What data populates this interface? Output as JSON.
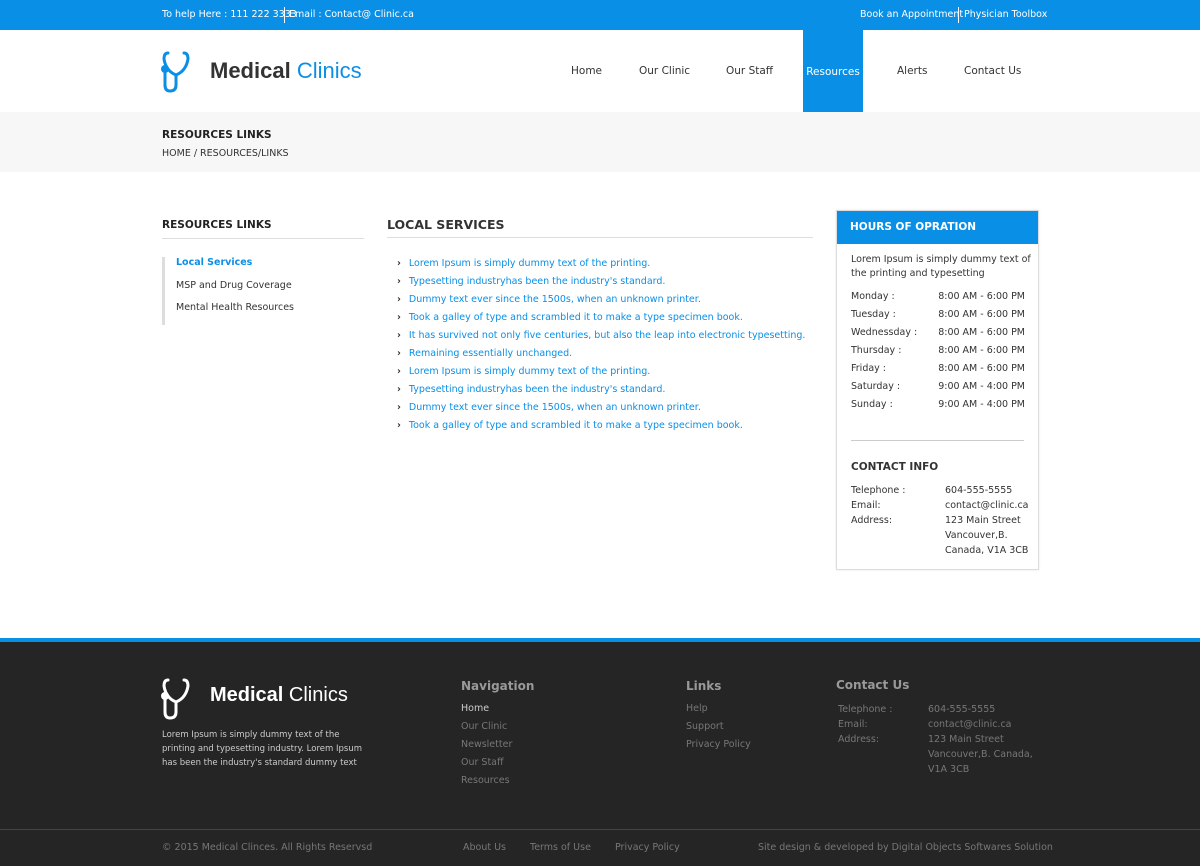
{
  "topbar": {
    "phone": "To help Here : 111 222 3333",
    "email": "Email : Contact@ Clinic.ca",
    "appointment": "Book an Appointment",
    "toolbox": "Physician Toolbox"
  },
  "brand": {
    "name1": "Medical",
    "name2": "Clinics",
    "color": "#0a8fe6"
  },
  "nav": [
    "Home",
    "Our Clinic",
    "Our Staff",
    "Resources",
    "Alerts",
    "Contact Us"
  ],
  "page": {
    "title": "RESOURCES LINKS",
    "breadcrumb": "HOME / RESOURCES/LINKS"
  },
  "sidebar": {
    "title": "RESOURCES LINKS",
    "items": [
      "Local Services",
      "MSP and Drug Coverage",
      "Mental Health Resources"
    ]
  },
  "main": {
    "title": "LOCAL SERVICES",
    "links": [
      "Lorem Ipsum is simply dummy text of the printing.",
      "Typesetting industryhas been the industry's standard.",
      "Dummy text ever since the 1500s, when an unknown printer.",
      "Took a galley of type and scrambled it to make a type specimen book.",
      "It has survived not only five centuries, but also the leap into electronic typesetting.",
      "Remaining essentially unchanged.",
      "Lorem Ipsum is simply dummy text of the printing.",
      "Typesetting industryhas been the industry's standard.",
      "Dummy text ever since the 1500s, when an unknown printer.",
      "Took a galley of type and scrambled it to make a type specimen book."
    ]
  },
  "hours": {
    "title": "HOURS OF OPRATION",
    "intro": "Lorem Ipsum is simply dummy text of the printing and typesetting",
    "rows": [
      [
        "Monday :",
        "8:00 AM - 6:00 PM"
      ],
      [
        "Tuesday :",
        "8:00 AM - 6:00 PM"
      ],
      [
        "Wednessday :",
        "8:00 AM - 6:00 PM"
      ],
      [
        "Thursday :",
        "8:00 AM - 6:00 PM"
      ],
      [
        "Friday :",
        "8:00 AM - 6:00 PM"
      ],
      [
        "Saturday :",
        "9:00 AM - 4:00 PM"
      ],
      [
        "Sunday :",
        "9:00 AM - 4:00 PM"
      ]
    ],
    "contact_title": "CONTACT INFO",
    "contact": [
      [
        "Telephone :",
        "604-555-5555"
      ],
      [
        "Email:",
        "contact@clinic.ca"
      ],
      [
        "Address:",
        "123 Main Street"
      ],
      [
        "",
        "Vancouver,B."
      ],
      [
        "",
        "Canada, V1A 3CB"
      ]
    ]
  },
  "footer": {
    "about": "Lorem Ipsum is simply dummy text of the printing and typesetting industry. Lorem Ipsum has been the industry's standard dummy text",
    "nav_title": "Navigation",
    "nav": [
      "Home",
      "Our Clinic",
      "Newsletter",
      "Our Staff",
      "Resources"
    ],
    "links_title": "Links",
    "links": [
      "Help",
      "Support",
      "Privacy Policy"
    ],
    "contact_title": "Contact Us",
    "contact": [
      [
        "Telephone :",
        "604-555-5555"
      ],
      [
        "Email:",
        "contact@clinic.ca"
      ],
      [
        "Address:",
        "123 Main Street"
      ],
      [
        "",
        "Vancouver,B. Canada,"
      ],
      [
        "",
        "V1A 3CB"
      ]
    ],
    "copyright": "© 2015 Medical Clinces. All Rights Reservsd",
    "bottom_links": [
      "About Us",
      "Terms of Use",
      "Privacy Policy"
    ],
    "credit": "Site design & developed by Digital Objects Softwares Solution"
  }
}
